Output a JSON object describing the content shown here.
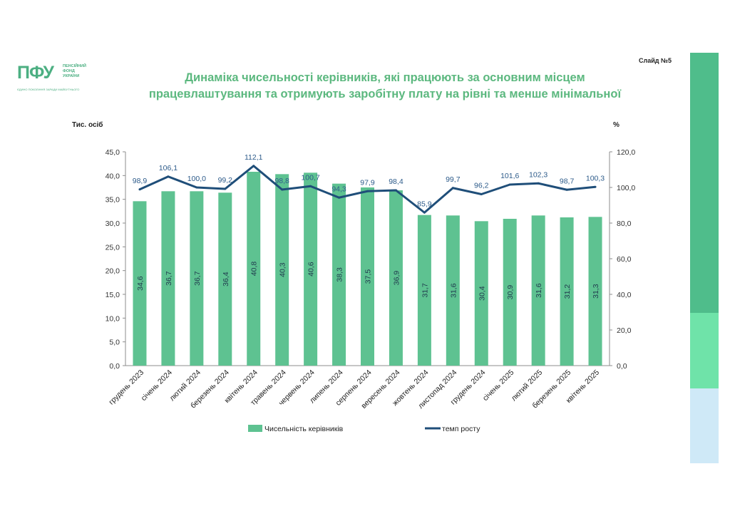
{
  "logo": {
    "mark": "ПФУ",
    "lines": [
      "ПЕНСІЙНИЙ",
      "ФОНД",
      "УКРАЇНИ"
    ],
    "motto": "ЄДИНО ПОКОЛІННЯ ЗАРАДИ МАЙБУТНЬОГО"
  },
  "slide_label": "Слайд №5",
  "title_lines": [
    "Динаміка чисельності керівників, які працюють за основним місцем",
    "працевлаштування та отримують заробітну плату на рівні та менше мінімальної"
  ],
  "colors": {
    "bar": "#5ec291",
    "line": "#1f4e79",
    "title": "#5cb87f",
    "sidebar": [
      "#4fbd8b",
      "#6fe3a9",
      "#cfe9f7"
    ]
  },
  "chart_data": {
    "type": "bar+line",
    "categories": [
      "грудень 2023",
      "січень 2024",
      "лютий 2024",
      "березень 2024",
      "квітень 2024",
      "травень 2024",
      "червень 2024",
      "липень 2024",
      "серпень 2024",
      "вересень 2024",
      "жовтень 2024",
      "листопад 2024",
      "грудень 2024",
      "січень 2025",
      "лютий 2025",
      "березень 2025",
      "квітень 2025"
    ],
    "series": [
      {
        "name": "Чисельність керівників",
        "type": "bar",
        "axis": "left",
        "values": [
          34.6,
          36.7,
          36.7,
          36.4,
          40.8,
          40.3,
          40.6,
          38.3,
          37.5,
          36.9,
          31.7,
          31.6,
          30.4,
          30.9,
          31.6,
          31.2,
          31.3
        ],
        "labels": [
          "34,6",
          "36,7",
          "36,7",
          "36,4",
          "40,8",
          "40,3",
          "40,6",
          "38,3",
          "37,5",
          "36,9",
          "31,7",
          "31,6",
          "30,4",
          "30,9",
          "31,6",
          "31,2",
          "31,3"
        ]
      },
      {
        "name": "темп росту",
        "type": "line",
        "axis": "right",
        "values": [
          98.9,
          106.1,
          100.0,
          99.2,
          112.1,
          98.8,
          100.7,
          94.3,
          97.9,
          98.4,
          85.9,
          99.7,
          96.2,
          101.6,
          102.3,
          98.7,
          100.3
        ],
        "labels": [
          "98,9",
          "106,1",
          "100,0",
          "99,2",
          "112,1",
          "98,8",
          "100,7",
          "94,3",
          "97,9",
          "98,4",
          "85,9",
          "99,7",
          "96,2",
          "101,6",
          "102,3",
          "98,7",
          "100,3"
        ]
      }
    ],
    "y_left": {
      "label": "Тис. осіб",
      "range": [
        0,
        45
      ],
      "ticks": [
        "0,0",
        "5,0",
        "10,0",
        "15,0",
        "20,0",
        "25,0",
        "30,0",
        "35,0",
        "40,0",
        "45,0"
      ]
    },
    "y_right": {
      "label": "%",
      "range": [
        0,
        120
      ],
      "ticks": [
        "0,0",
        "20,0",
        "40,0",
        "60,0",
        "80,0",
        "100,0",
        "120,0"
      ]
    },
    "grid": false,
    "legend": "bottom"
  }
}
